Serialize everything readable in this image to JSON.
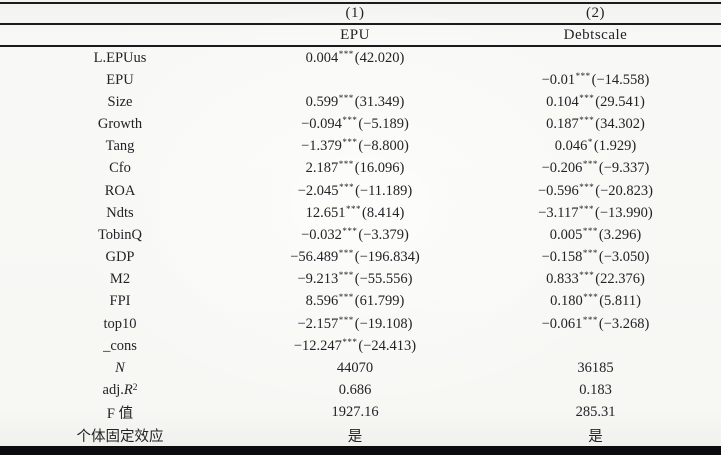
{
  "table": {
    "model_headers": [
      "(1)",
      "(2)"
    ],
    "dep_var_headers": [
      "EPU",
      "Debtscale"
    ],
    "rows": [
      {
        "label": "L.EPUus",
        "c1": {
          "coef": "0.004",
          "stars": "***",
          "t": "(42.020)"
        },
        "c2": null
      },
      {
        "label": "EPU",
        "c1": null,
        "c2": {
          "coef": "−0.01",
          "stars": "***",
          "t": "(−14.558)"
        }
      },
      {
        "label": "Size",
        "c1": {
          "coef": "0.599",
          "stars": "***",
          "t": "(31.349)"
        },
        "c2": {
          "coef": "0.104",
          "stars": "***",
          "t": "(29.541)"
        }
      },
      {
        "label": "Growth",
        "c1": {
          "coef": "−0.094",
          "stars": "***",
          "t": "(−5.189)"
        },
        "c2": {
          "coef": "0.187",
          "stars": "***",
          "t": "(34.302)"
        }
      },
      {
        "label": "Tang",
        "c1": {
          "coef": "−1.379",
          "stars": "***",
          "t": "(−8.800)"
        },
        "c2": {
          "coef": "0.046",
          "stars": "*",
          "t": "(1.929)"
        }
      },
      {
        "label": "Cfo",
        "c1": {
          "coef": "2.187",
          "stars": "***",
          "t": "(16.096)"
        },
        "c2": {
          "coef": "−0.206",
          "stars": "***",
          "t": "(−9.337)"
        }
      },
      {
        "label": "ROA",
        "c1": {
          "coef": "−2.045",
          "stars": "***",
          "t": "(−11.189)"
        },
        "c2": {
          "coef": "−0.596",
          "stars": "***",
          "t": "(−20.823)"
        }
      },
      {
        "label": "Ndts",
        "c1": {
          "coef": "12.651",
          "stars": "***",
          "t": "(8.414)"
        },
        "c2": {
          "coef": "−3.117",
          "stars": "***",
          "t": "(−13.990)"
        }
      },
      {
        "label": "TobinQ",
        "c1": {
          "coef": "−0.032",
          "stars": "***",
          "t": "(−3.379)"
        },
        "c2": {
          "coef": "0.005",
          "stars": "***",
          "t": "(3.296)"
        }
      },
      {
        "label": "GDP",
        "c1": {
          "coef": "−56.489",
          "stars": "***",
          "t": "(−196.834)"
        },
        "c2": {
          "coef": "−0.158",
          "stars": "***",
          "t": "(−3.050)"
        }
      },
      {
        "label": "M2",
        "c1": {
          "coef": "−9.213",
          "stars": "***",
          "t": "(−55.556)"
        },
        "c2": {
          "coef": "0.833",
          "stars": "***",
          "t": "(22.376)"
        }
      },
      {
        "label": "FPI",
        "c1": {
          "coef": "8.596",
          "stars": "***",
          "t": "(61.799)"
        },
        "c2": {
          "coef": "0.180",
          "stars": "***",
          "t": "(5.811)"
        }
      },
      {
        "label": "top10",
        "c1": {
          "coef": "−2.157",
          "stars": "***",
          "t": "(−19.108)"
        },
        "c2": {
          "coef": "−0.061",
          "stars": "***",
          "t": "(−3.268)"
        }
      },
      {
        "label": "_cons",
        "c1": {
          "coef": "−12.247",
          "stars": "***",
          "t": "(−24.413)"
        },
        "c2": null
      },
      {
        "label": "N",
        "label_segments": [
          {
            "text": "N",
            "italic": true
          }
        ],
        "c1": "44070",
        "c2": "36185"
      },
      {
        "label": "adj.R²",
        "label_segments": [
          {
            "text": "adj."
          },
          {
            "text": "R",
            "italic": true
          },
          {
            "text": "2",
            "sup": true
          }
        ],
        "c1": "0.686",
        "c2": "0.183"
      },
      {
        "label": "F 值",
        "c1": "1927.16",
        "c2": "285.31"
      },
      {
        "label": "个体固定效应",
        "c1": "是",
        "c2": "是"
      }
    ]
  },
  "colors": {
    "rule": "#1b1b1e",
    "bottom_bar": "#0c0c0e",
    "text": "#232327",
    "background": "#f6f6f4"
  }
}
